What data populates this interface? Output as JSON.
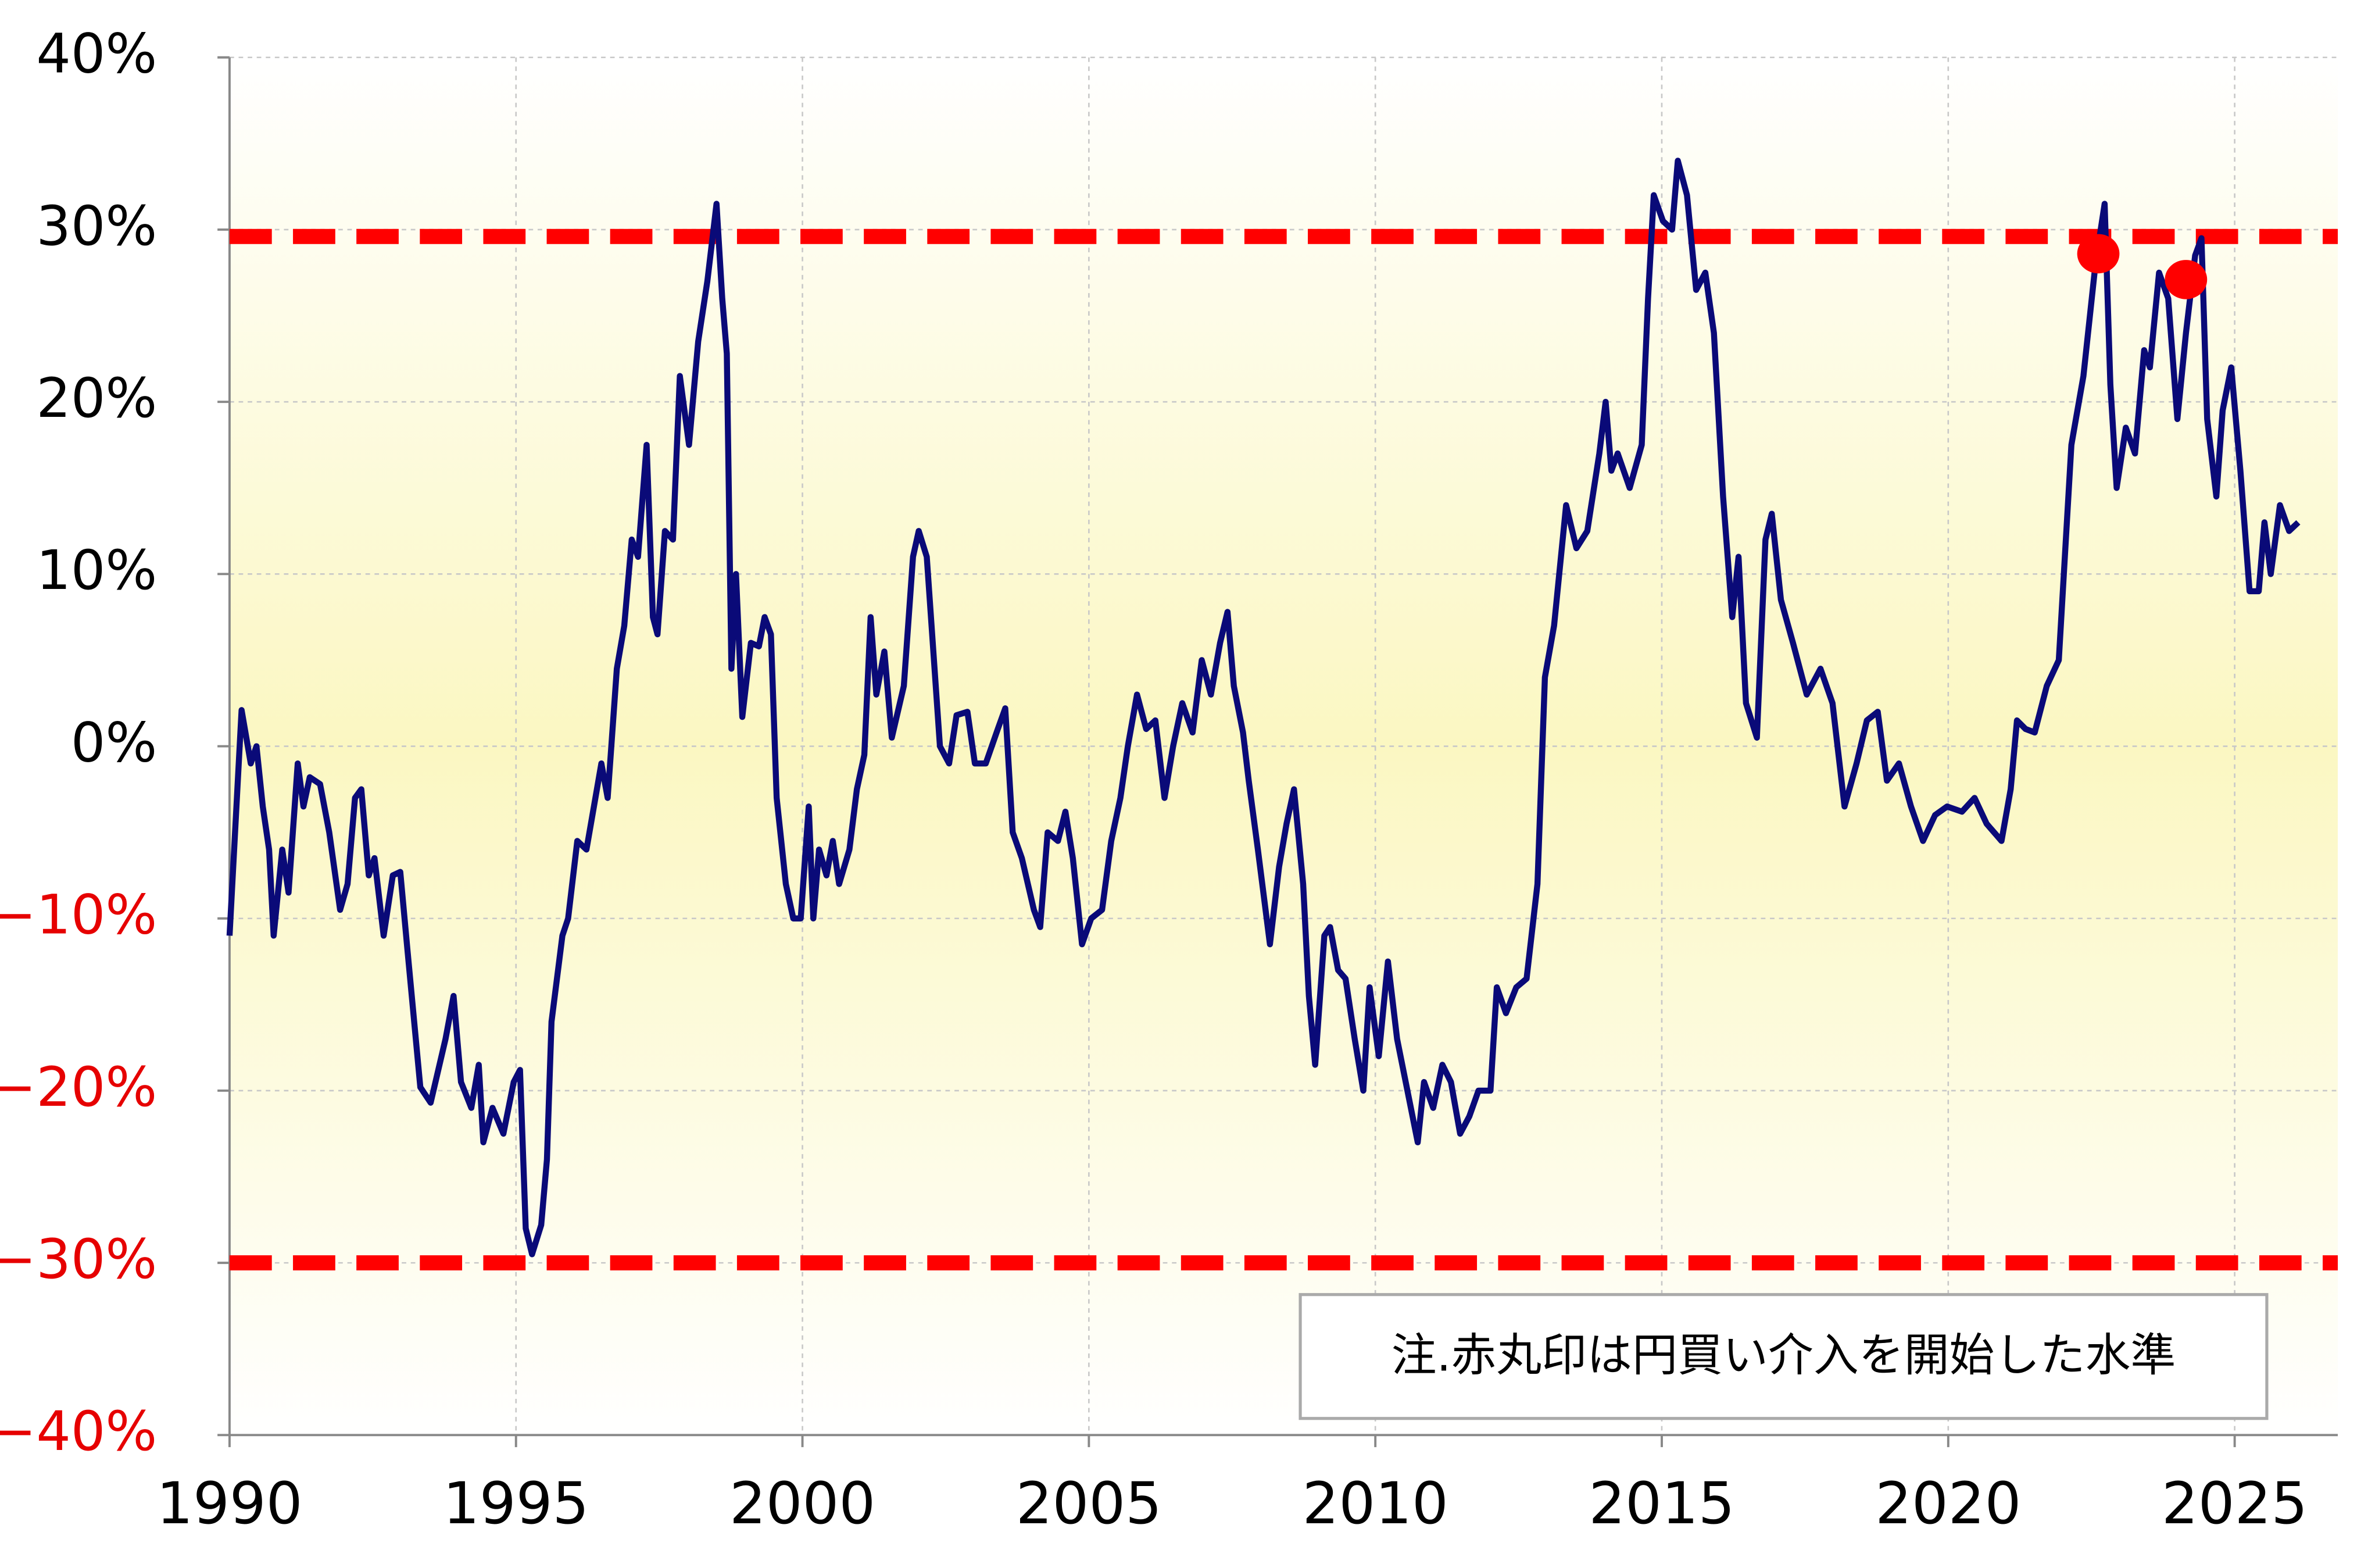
{
  "chart_data": {
    "type": "line",
    "x": [
      1990.0,
      1990.21,
      1990.37,
      1990.47,
      1990.58,
      1990.69,
      1990.77,
      1990.92,
      1991.03,
      1991.19,
      1991.29,
      1991.4,
      1991.58,
      1991.74,
      1991.93,
      1992.06,
      1992.19,
      1992.3,
      1992.43,
      1992.53,
      1992.69,
      1992.85,
      1992.98,
      1993.11,
      1993.33,
      1993.51,
      1993.77,
      1993.91,
      1994.04,
      1994.22,
      1994.35,
      1994.43,
      1994.59,
      1994.78,
      1994.96,
      1995.07,
      1995.17,
      1995.28,
      1995.44,
      1995.54,
      1995.62,
      1995.81,
      1995.91,
      1996.07,
      1996.23,
      1996.36,
      1996.49,
      1996.6,
      1996.76,
      1996.89,
      1997.02,
      1997.13,
      1997.28,
      1997.39,
      1997.47,
      1997.6,
      1997.74,
      1997.86,
      1998.02,
      1998.18,
      1998.34,
      1998.5,
      1998.6,
      1998.68,
      1998.76,
      1998.84,
      1998.95,
      1999.1,
      1999.24,
      1999.34,
      1999.45,
      1999.55,
      1999.71,
      1999.84,
      1999.97,
      2000.11,
      2000.19,
      2000.29,
      2000.42,
      2000.53,
      2000.64,
      2000.82,
      2000.95,
      2001.08,
      2001.19,
      2001.29,
      2001.43,
      2001.56,
      2001.77,
      2001.93,
      2002.03,
      2002.17,
      2002.4,
      2002.56,
      2002.69,
      2002.88,
      2003.01,
      2003.2,
      2003.41,
      2003.54,
      2003.67,
      2003.83,
      2004.04,
      2004.15,
      2004.28,
      2004.46,
      2004.59,
      2004.72,
      2004.88,
      2005.04,
      2005.23,
      2005.39,
      2005.55,
      2005.68,
      2005.84,
      2006.0,
      2006.16,
      2006.32,
      2006.47,
      2006.63,
      2006.81,
      2006.97,
      2007.13,
      2007.29,
      2007.42,
      2007.53,
      2007.69,
      2007.79,
      2007.95,
      2008.16,
      2008.32,
      2008.45,
      2008.58,
      2008.74,
      2008.84,
      2008.95,
      2009.11,
      2009.21,
      2009.35,
      2009.48,
      2009.64,
      2009.79,
      2009.9,
      2010.06,
      2010.22,
      2010.38,
      2010.59,
      2010.74,
      2010.85,
      2011.01,
      2011.17,
      2011.32,
      2011.48,
      2011.64,
      2011.8,
      2012.01,
      2012.12,
      2012.28,
      2012.46,
      2012.64,
      2012.83,
      2012.96,
      2013.12,
      2013.33,
      2013.51,
      2013.7,
      2013.91,
      2014.02,
      2014.12,
      2014.23,
      2014.44,
      2014.65,
      2014.76,
      2014.86,
      2015.02,
      2015.18,
      2015.28,
      2015.44,
      2015.6,
      2015.76,
      2015.91,
      2016.07,
      2016.23,
      2016.34,
      2016.47,
      2016.66,
      2016.81,
      2016.92,
      2017.08,
      2017.29,
      2017.53,
      2017.77,
      2017.98,
      2018.19,
      2018.4,
      2018.58,
      2018.77,
      2018.93,
      2019.14,
      2019.35,
      2019.56,
      2019.77,
      2019.98,
      2020.24,
      2020.46,
      2020.67,
      2020.93,
      2021.09,
      2021.2,
      2021.35,
      2021.51,
      2021.72,
      2021.93,
      2022.15,
      2022.36,
      2022.57,
      2022.73,
      2022.83,
      2022.94,
      2023.1,
      2023.26,
      2023.42,
      2023.52,
      2023.68,
      2023.84,
      2024.0,
      2024.15,
      2024.31,
      2024.42,
      2024.52,
      2024.68,
      2024.79,
      2024.94,
      2025.1,
      2025.26,
      2025.42,
      2025.52,
      2025.63,
      2025.79,
      2025.95,
      2026.11
    ],
    "series": [
      {
        "color": "#0a0a78",
        "values": [
          -11,
          2.1,
          -1,
          0,
          -3.5,
          -6,
          -11,
          -6,
          -8.5,
          -1,
          -3.5,
          -1.8,
          -2.2,
          -5,
          -9.5,
          -8,
          -3,
          -2.5,
          -7.5,
          -6.5,
          -11,
          -7.5,
          -7.3,
          -12,
          -19.8,
          -20.7,
          -17,
          -14.5,
          -19.5,
          -21,
          -18.5,
          -23,
          -21,
          -22.5,
          -19.5,
          -18.8,
          -28,
          -29.5,
          -27.8,
          -24,
          -16,
          -11,
          -10,
          -5.5,
          -6,
          -3.5,
          -1,
          -3,
          4.5,
          7,
          12,
          11,
          17.5,
          7.5,
          6.5,
          12.5,
          12,
          21.5,
          17.5,
          23.5,
          27,
          31.5,
          26,
          22.8,
          4.5,
          10,
          1.7,
          6,
          5.8,
          7.5,
          6.5,
          -3,
          -8,
          -10,
          -10,
          -3.5,
          -10,
          -6,
          -7.5,
          -5.5,
          -8,
          -6,
          -2.5,
          -0.5,
          7.5,
          3,
          5.5,
          0.5,
          3.5,
          11,
          12.5,
          11,
          0,
          -1,
          1.8,
          2,
          -1,
          -1,
          1,
          2.2,
          -5,
          -6.5,
          -9.5,
          -10.5,
          -5,
          -5.5,
          -3.8,
          -6.5,
          -11.5,
          -10,
          -9.5,
          -5.5,
          -3,
          0,
          3,
          1,
          1.5,
          -3,
          0,
          2.5,
          0.8,
          5,
          3,
          6,
          7.8,
          3.5,
          0.8,
          -2,
          -6,
          -11.5,
          -7,
          -4.5,
          -2.5,
          -8,
          -14.5,
          -18.5,
          -11,
          -10.5,
          -13,
          -13.5,
          -17,
          -20,
          -14,
          -18,
          -12.5,
          -17,
          -20.5,
          -23,
          -19.5,
          -21,
          -18.5,
          -19.5,
          -22.5,
          -21.5,
          -20,
          -20,
          -14,
          -15.5,
          -14,
          -13.5,
          -8,
          4,
          7,
          14,
          11.5,
          12.5,
          17,
          20,
          16,
          17,
          15,
          17.5,
          26,
          32,
          30.5,
          30,
          34,
          32,
          26.5,
          27.5,
          24,
          14.5,
          7.5,
          11,
          2.5,
          0.5,
          12,
          13.5,
          8.5,
          6,
          3,
          4.5,
          2.5,
          -3.5,
          -1,
          1.5,
          2,
          -2,
          -1,
          -3.5,
          -5.5,
          -4,
          -3.5,
          -3.8,
          -3,
          -4.5,
          -5.5,
          -2.5,
          1.5,
          1,
          0.8,
          3.5,
          5,
          17.5,
          21.5,
          28,
          31.5,
          21,
          15,
          18.5,
          17,
          23,
          22,
          27.5,
          26,
          19,
          24,
          28.5,
          29.5,
          19,
          14.5,
          19.5,
          22,
          16,
          9,
          9,
          13,
          10,
          14,
          12.5,
          13
        ]
      }
    ],
    "xlim": [
      1990,
      2026.8
    ],
    "xticks": [
      1990,
      1995,
      2000,
      2005,
      2010,
      2015,
      2020,
      2025
    ],
    "ylim": [
      -40,
      40
    ],
    "yticks": [
      {
        "value": -40,
        "label": "−40%"
      },
      {
        "value": -30,
        "label": "−30%"
      },
      {
        "value": -20,
        "label": "−20%"
      },
      {
        "value": -10,
        "label": "−10%"
      },
      {
        "value": 0,
        "label": "0%"
      },
      {
        "value": 10,
        "label": "10%"
      },
      {
        "value": 20,
        "label": "20%"
      },
      {
        "value": 30,
        "label": "30%"
      },
      {
        "value": 40,
        "label": "40%"
      }
    ],
    "negative_tick_color": "#e60000",
    "grid": true,
    "reference_lines": [
      {
        "value": 29.6,
        "color": "#ff0000"
      },
      {
        "value": -30,
        "color": "#ff0000"
      }
    ],
    "markers": {
      "x": [
        2022.62,
        2024.15
      ],
      "values": [
        28.6,
        27.1
      ],
      "color": "#ff0000"
    },
    "annotation": "注.赤丸印は円買い介入を開始した水準"
  }
}
